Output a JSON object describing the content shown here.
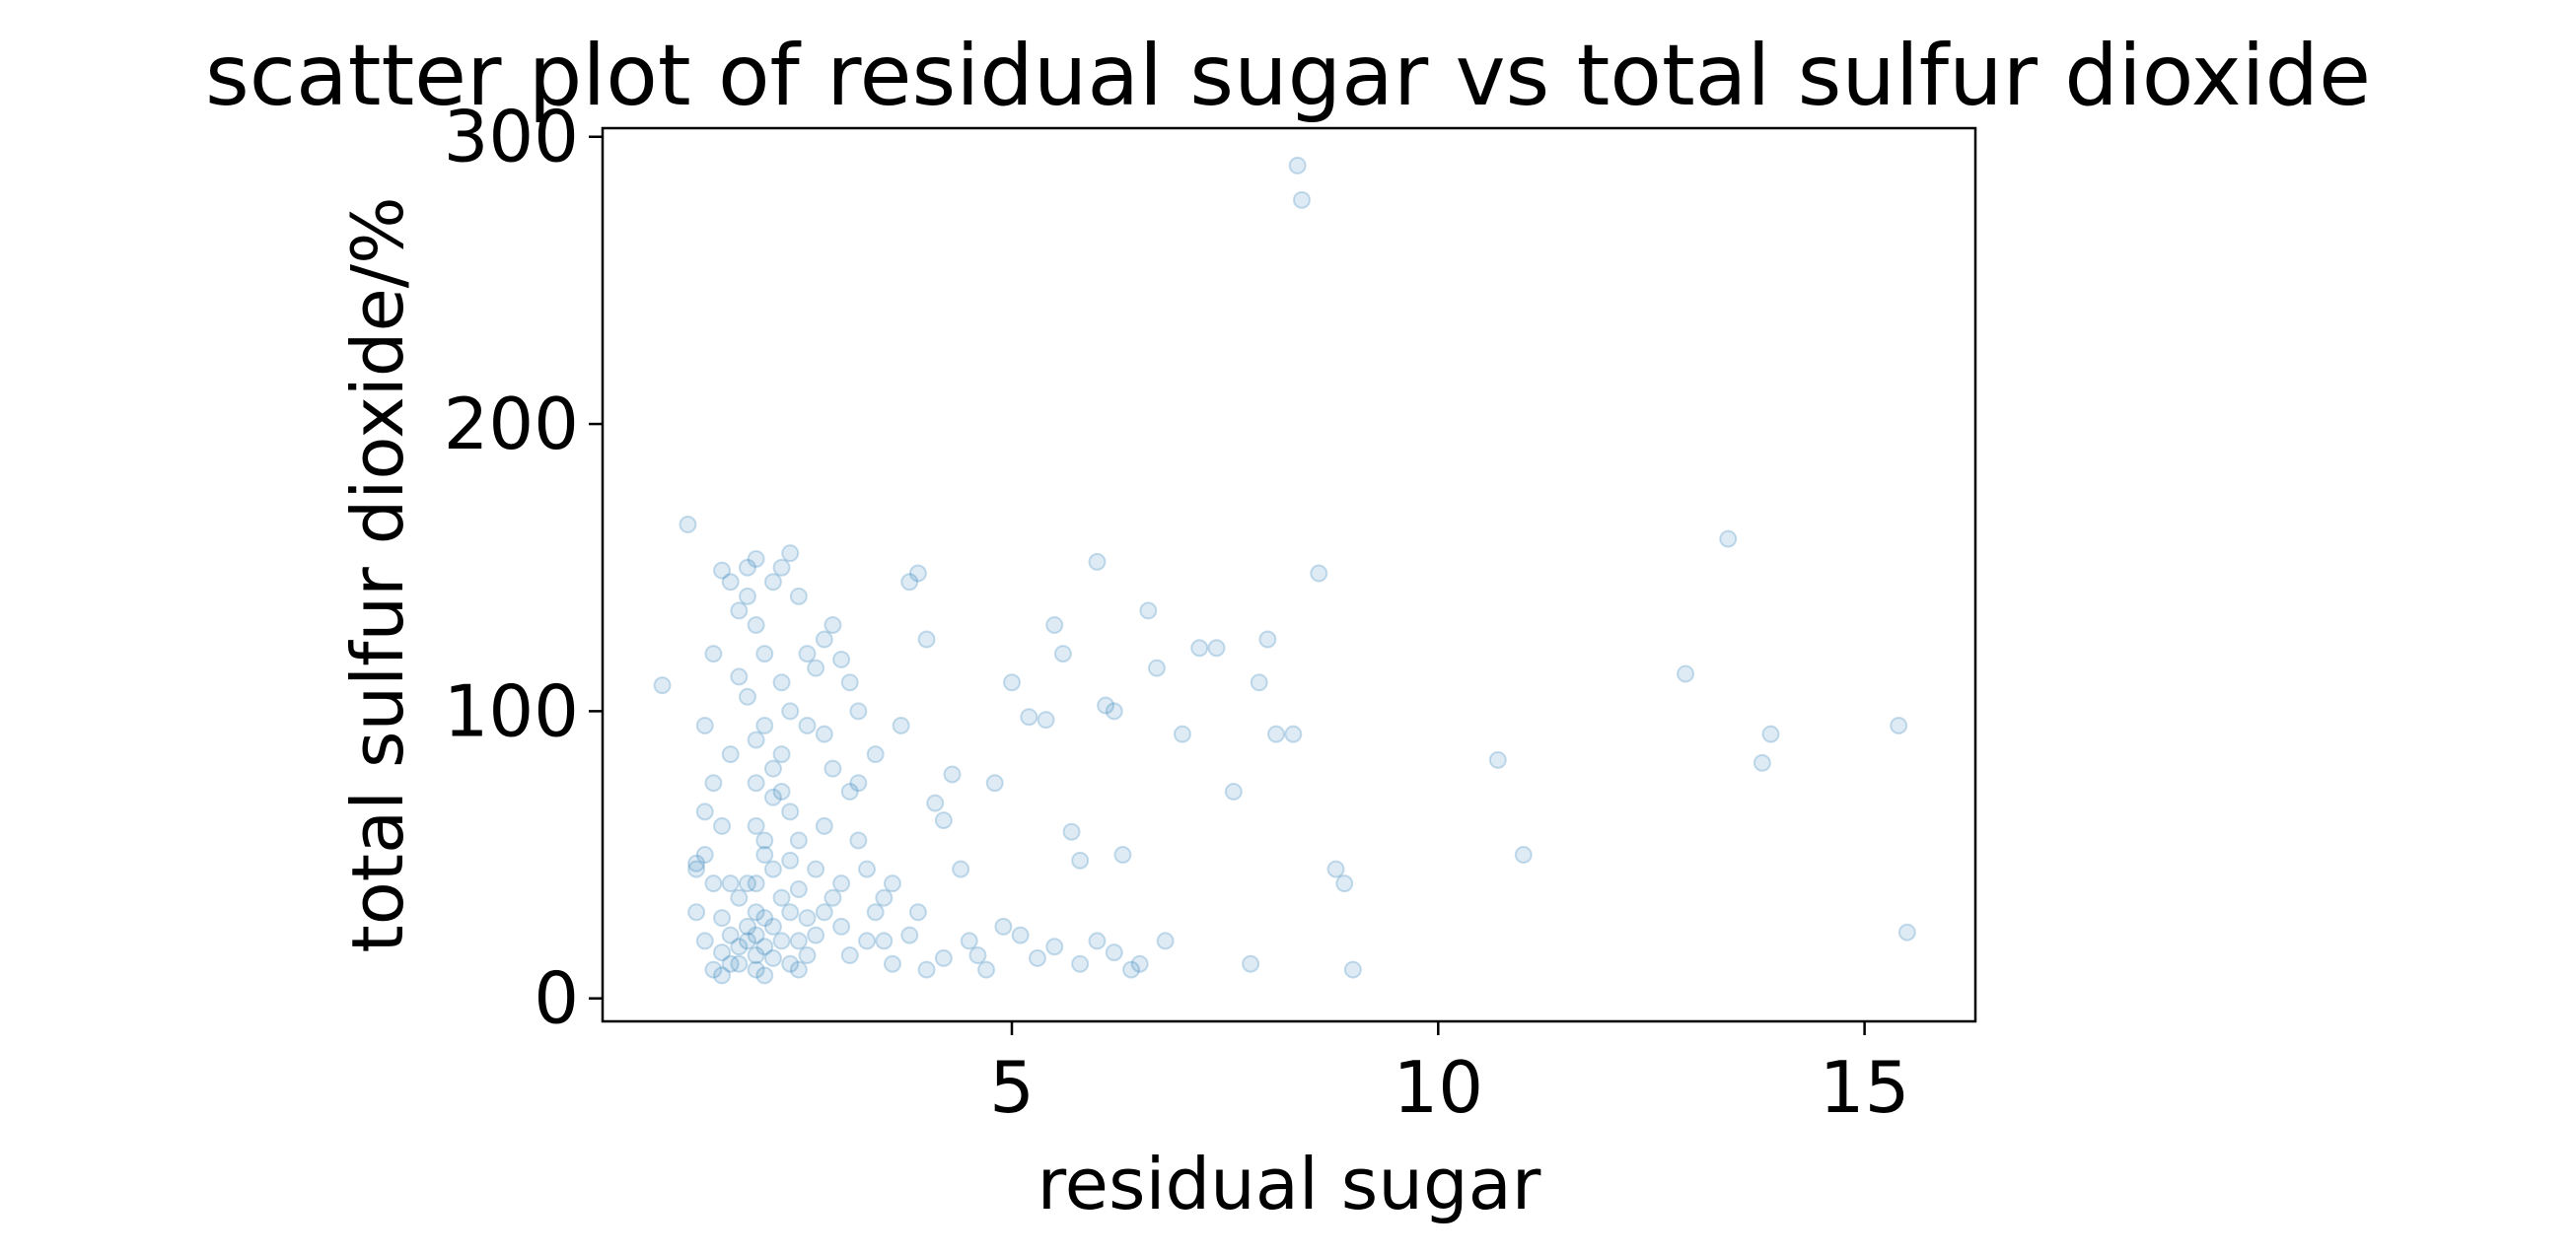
{
  "chart_data": {
    "type": "scatter",
    "title": "scatter plot of residual sugar vs total sulfur dioxide",
    "xlabel": "residual sugar",
    "ylabel": "total sulfur dioxide/%",
    "xlim": [
      0.2,
      16.3
    ],
    "ylim": [
      -8,
      303
    ],
    "xticks": [
      5,
      10,
      15
    ],
    "yticks": [
      0,
      100,
      200,
      300
    ],
    "xtick_labels": [
      "5",
      "10",
      "15"
    ],
    "ytick_labels": [
      "0",
      "100",
      "200",
      "300"
    ],
    "grid": false,
    "legend": "none",
    "marker_color": "#1f77b4",
    "marker_alpha": 0.15,
    "points": [
      [
        0.9,
        109
      ],
      [
        1.2,
        165
      ],
      [
        1.3,
        47
      ],
      [
        1.3,
        45
      ],
      [
        1.4,
        95
      ],
      [
        1.5,
        120
      ],
      [
        1.6,
        149
      ],
      [
        1.7,
        145
      ],
      [
        1.8,
        135
      ],
      [
        1.9,
        150
      ],
      [
        1.9,
        140
      ],
      [
        2.0,
        153
      ],
      [
        2.0,
        130
      ],
      [
        2.2,
        145
      ],
      [
        2.3,
        150
      ],
      [
        2.4,
        155
      ],
      [
        2.5,
        140
      ],
      [
        2.1,
        120
      ],
      [
        2.3,
        110
      ],
      [
        1.8,
        112
      ],
      [
        2.6,
        120
      ],
      [
        2.7,
        115
      ],
      [
        2.8,
        125
      ],
      [
        2.9,
        130
      ],
      [
        3.0,
        118
      ],
      [
        3.1,
        110
      ],
      [
        3.2,
        100
      ],
      [
        2.4,
        100
      ],
      [
        2.0,
        90
      ],
      [
        1.7,
        85
      ],
      [
        1.5,
        75
      ],
      [
        1.6,
        60
      ],
      [
        1.4,
        50
      ],
      [
        1.3,
        30
      ],
      [
        1.4,
        20
      ],
      [
        1.5,
        10
      ],
      [
        1.6,
        8
      ],
      [
        1.8,
        12
      ],
      [
        1.9,
        25
      ],
      [
        2.0,
        40
      ],
      [
        2.1,
        55
      ],
      [
        2.2,
        70
      ],
      [
        2.3,
        85
      ],
      [
        2.4,
        30
      ],
      [
        2.5,
        20
      ],
      [
        2.6,
        15
      ],
      [
        2.7,
        45
      ],
      [
        2.8,
        60
      ],
      [
        2.9,
        35
      ],
      [
        3.0,
        25
      ],
      [
        3.1,
        15
      ],
      [
        3.2,
        55
      ],
      [
        3.3,
        45
      ],
      [
        3.4,
        30
      ],
      [
        3.5,
        20
      ],
      [
        3.6,
        12
      ],
      [
        3.7,
        95
      ],
      [
        3.8,
        145
      ],
      [
        3.9,
        148
      ],
      [
        4.0,
        125
      ],
      [
        4.1,
        68
      ],
      [
        4.2,
        62
      ],
      [
        4.3,
        78
      ],
      [
        4.4,
        45
      ],
      [
        4.5,
        20
      ],
      [
        4.6,
        15
      ],
      [
        4.7,
        10
      ],
      [
        4.8,
        75
      ],
      [
        5.0,
        110
      ],
      [
        5.2,
        98
      ],
      [
        5.4,
        97
      ],
      [
        5.5,
        130
      ],
      [
        5.6,
        120
      ],
      [
        5.7,
        58
      ],
      [
        5.8,
        48
      ],
      [
        6.0,
        152
      ],
      [
        6.1,
        102
      ],
      [
        6.2,
        100
      ],
      [
        6.3,
        50
      ],
      [
        6.4,
        10
      ],
      [
        6.5,
        12
      ],
      [
        6.6,
        135
      ],
      [
        6.7,
        115
      ],
      [
        6.8,
        20
      ],
      [
        7.0,
        92
      ],
      [
        7.2,
        122
      ],
      [
        7.4,
        122
      ],
      [
        7.6,
        72
      ],
      [
        7.8,
        12
      ],
      [
        7.9,
        110
      ],
      [
        8.0,
        125
      ],
      [
        8.1,
        92
      ],
      [
        8.3,
        92
      ],
      [
        8.35,
        290
      ],
      [
        8.4,
        278
      ],
      [
        8.6,
        148
      ],
      [
        8.8,
        45
      ],
      [
        8.9,
        40
      ],
      [
        9.0,
        10
      ],
      [
        10.7,
        83
      ],
      [
        11.0,
        50
      ],
      [
        12.9,
        113
      ],
      [
        13.4,
        160
      ],
      [
        13.8,
        82
      ],
      [
        13.9,
        92
      ],
      [
        15.4,
        95
      ],
      [
        15.5,
        23
      ],
      [
        1.9,
        20
      ],
      [
        2.0,
        22
      ],
      [
        2.1,
        18
      ],
      [
        2.2,
        25
      ],
      [
        2.0,
        30
      ],
      [
        1.8,
        35
      ],
      [
        2.1,
        28
      ],
      [
        2.2,
        14
      ],
      [
        2.3,
        20
      ],
      [
        2.0,
        15
      ],
      [
        1.9,
        40
      ],
      [
        2.2,
        45
      ],
      [
        2.3,
        35
      ],
      [
        2.1,
        50
      ],
      [
        2.0,
        60
      ],
      [
        2.4,
        48
      ],
      [
        2.5,
        38
      ],
      [
        1.7,
        22
      ],
      [
        1.8,
        18
      ],
      [
        2.6,
        28
      ],
      [
        2.5,
        55
      ],
      [
        2.4,
        65
      ],
      [
        2.2,
        80
      ],
      [
        2.1,
        95
      ],
      [
        1.9,
        105
      ],
      [
        2.3,
        72
      ],
      [
        2.0,
        75
      ],
      [
        1.6,
        28
      ],
      [
        1.7,
        40
      ],
      [
        2.7,
        22
      ],
      [
        2.8,
        30
      ],
      [
        3.0,
        40
      ],
      [
        3.3,
        20
      ],
      [
        3.5,
        35
      ],
      [
        3.8,
        22
      ],
      [
        4.2,
        14
      ],
      [
        5.1,
        22
      ],
      [
        5.5,
        18
      ],
      [
        6.0,
        20
      ],
      [
        4.9,
        25
      ],
      [
        5.3,
        14
      ],
      [
        3.9,
        30
      ],
      [
        3.6,
        40
      ],
      [
        4.0,
        10
      ],
      [
        6.2,
        16
      ],
      [
        5.8,
        12
      ],
      [
        2.9,
        80
      ],
      [
        3.1,
        72
      ],
      [
        2.6,
        95
      ],
      [
        2.8,
        92
      ],
      [
        3.4,
        85
      ],
      [
        3.2,
        75
      ],
      [
        1.5,
        40
      ],
      [
        1.4,
        65
      ],
      [
        2.0,
        10
      ],
      [
        2.1,
        8
      ],
      [
        2.4,
        12
      ],
      [
        2.5,
        10
      ],
      [
        1.6,
        16
      ],
      [
        1.7,
        12
      ]
    ]
  }
}
